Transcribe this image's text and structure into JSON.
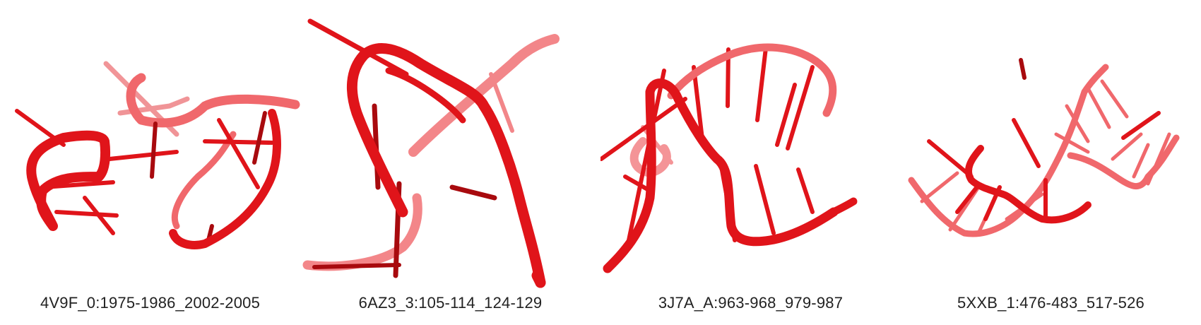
{
  "colors": {
    "strand": "#e0141a",
    "strand_dark": "#a80a0e",
    "strand_faded": "#f0686c",
    "background": "#ffffff",
    "caption_text": "#222222"
  },
  "panels": [
    {
      "caption": "4V9F_0:1975-1986_2002-2005"
    },
    {
      "caption": "6AZ3_3:105-114_124-129"
    },
    {
      "caption": "3J7A_A:963-968_979-987"
    },
    {
      "caption": "5XXB_1:476-483_517-526"
    }
  ]
}
